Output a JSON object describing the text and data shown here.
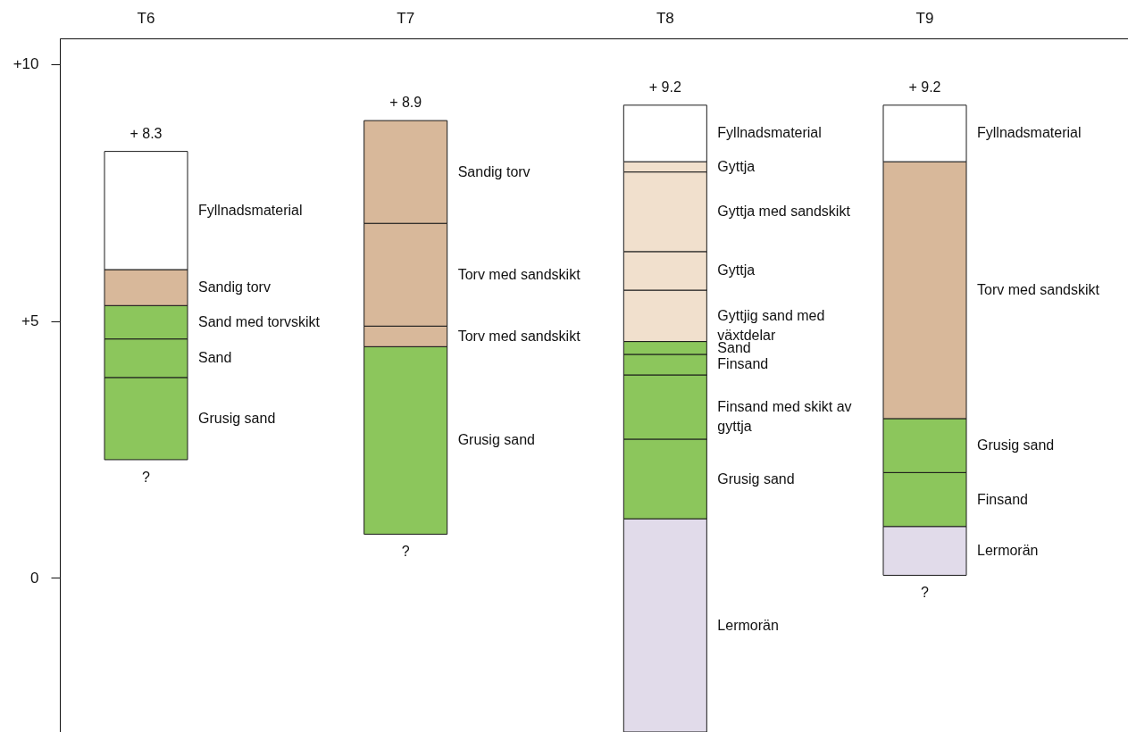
{
  "chart_data": {
    "type": "bar",
    "categories": [
      "T6",
      "T7",
      "T8",
      "T9"
    ],
    "series": [
      {
        "colors": [
          "#8cc65c",
          "#8cc65c",
          "#e1dbea",
          "#e1dbea"
        ],
        "base": [
          2.3,
          0.85,
          -3,
          0.05
        ],
        "values": [
          1.6,
          3.65,
          4.15,
          0.95
        ]
      },
      {
        "colors": [
          "#8cc65c",
          "#d8b89a",
          "#8cc65c",
          "#8cc65c"
        ],
        "base": [
          3.9,
          4.5,
          1.15,
          1.0
        ],
        "values": [
          0.75,
          0.4,
          1.55,
          1.05
        ]
      },
      {
        "colors": [
          "#8cc65c",
          "#d8b89a",
          "#8cc65c",
          "#8cc65c"
        ],
        "base": [
          4.65,
          4.9,
          2.7,
          2.05
        ],
        "values": [
          0.65,
          2.0,
          1.25,
          1.05
        ]
      },
      {
        "colors": [
          "#d8b89a",
          "#d8b89a",
          "#8cc65c",
          "#d8b89a"
        ],
        "base": [
          5.3,
          6.9,
          3.95,
          3.1
        ],
        "values": [
          0.7,
          2.0,
          0.4,
          5.0
        ]
      },
      {
        "colors": [
          "#ffffff",
          null,
          "#8cc65c",
          "#ffffff"
        ],
        "base": [
          6.0,
          null,
          4.35,
          8.1
        ],
        "values": [
          2.3,
          null,
          0.25,
          1.1
        ]
      },
      {
        "colors": [
          null,
          null,
          "#f1e0cd",
          null
        ],
        "base": [
          null,
          null,
          4.6,
          null
        ],
        "values": [
          null,
          null,
          1.0,
          null
        ]
      },
      {
        "colors": [
          null,
          null,
          "#f1e0cd",
          null
        ],
        "base": [
          null,
          null,
          5.6,
          null
        ],
        "values": [
          null,
          null,
          0.75,
          null
        ]
      },
      {
        "colors": [
          null,
          null,
          "#f1e0cd",
          null
        ],
        "base": [
          null,
          null,
          6.35,
          null
        ],
        "values": [
          null,
          null,
          1.55,
          null
        ]
      },
      {
        "colors": [
          null,
          null,
          "#f1e0cd",
          null
        ],
        "base": [
          null,
          null,
          7.9,
          null
        ],
        "values": [
          null,
          null,
          0.2,
          null
        ]
      },
      {
        "colors": [
          null,
          null,
          "#ffffff",
          null
        ],
        "base": [
          null,
          null,
          8.1,
          null
        ],
        "values": [
          null,
          null,
          1.1,
          null
        ]
      }
    ],
    "ylim": [
      -3,
      10.5
    ],
    "yticks": [
      {
        "value": 0,
        "label": "0"
      },
      {
        "value": 5,
        "label": "+5"
      },
      {
        "value": 10,
        "label": "+10"
      }
    ],
    "grid": false,
    "annotations": [
      {
        "text": "+ 8.3",
        "x": "T6",
        "y": 8.3
      },
      "Fyllnadsmaterial",
      "Sandig torv",
      "Sand med torvskikt",
      "Sand",
      "Grusig sand",
      {
        "text": "?",
        "x": "T6",
        "y": 2.3
      },
      {
        "text": "+ 8.9",
        "x": "T7",
        "y": 8.9
      },
      "Sandig torv",
      "Torv med sandskikt",
      "Torv med sandskikt",
      "Grusig sand",
      {
        "text": "?",
        "x": "T7",
        "y": 0.85
      },
      {
        "text": "+ 9.2",
        "x": "T8",
        "y": 9.2
      },
      "Fyllnadsmaterial",
      "Gyttja",
      "Gyttja med sandskikt",
      "Gyttja",
      "Gyttjig sand med växtdelar",
      "Sand",
      "Finsand",
      "Finsand med skikt av gyttja",
      "Grusig sand",
      "Lermorän",
      {
        "text": "+ 9.2",
        "x": "T9",
        "y": 9.2
      },
      "Fyllnadsmaterial",
      "Torv med sandskikt",
      "Grusig sand",
      "Finsand",
      "Lermorän",
      {
        "text": "?",
        "x": "T9",
        "y": 0.05
      }
    ]
  }
}
